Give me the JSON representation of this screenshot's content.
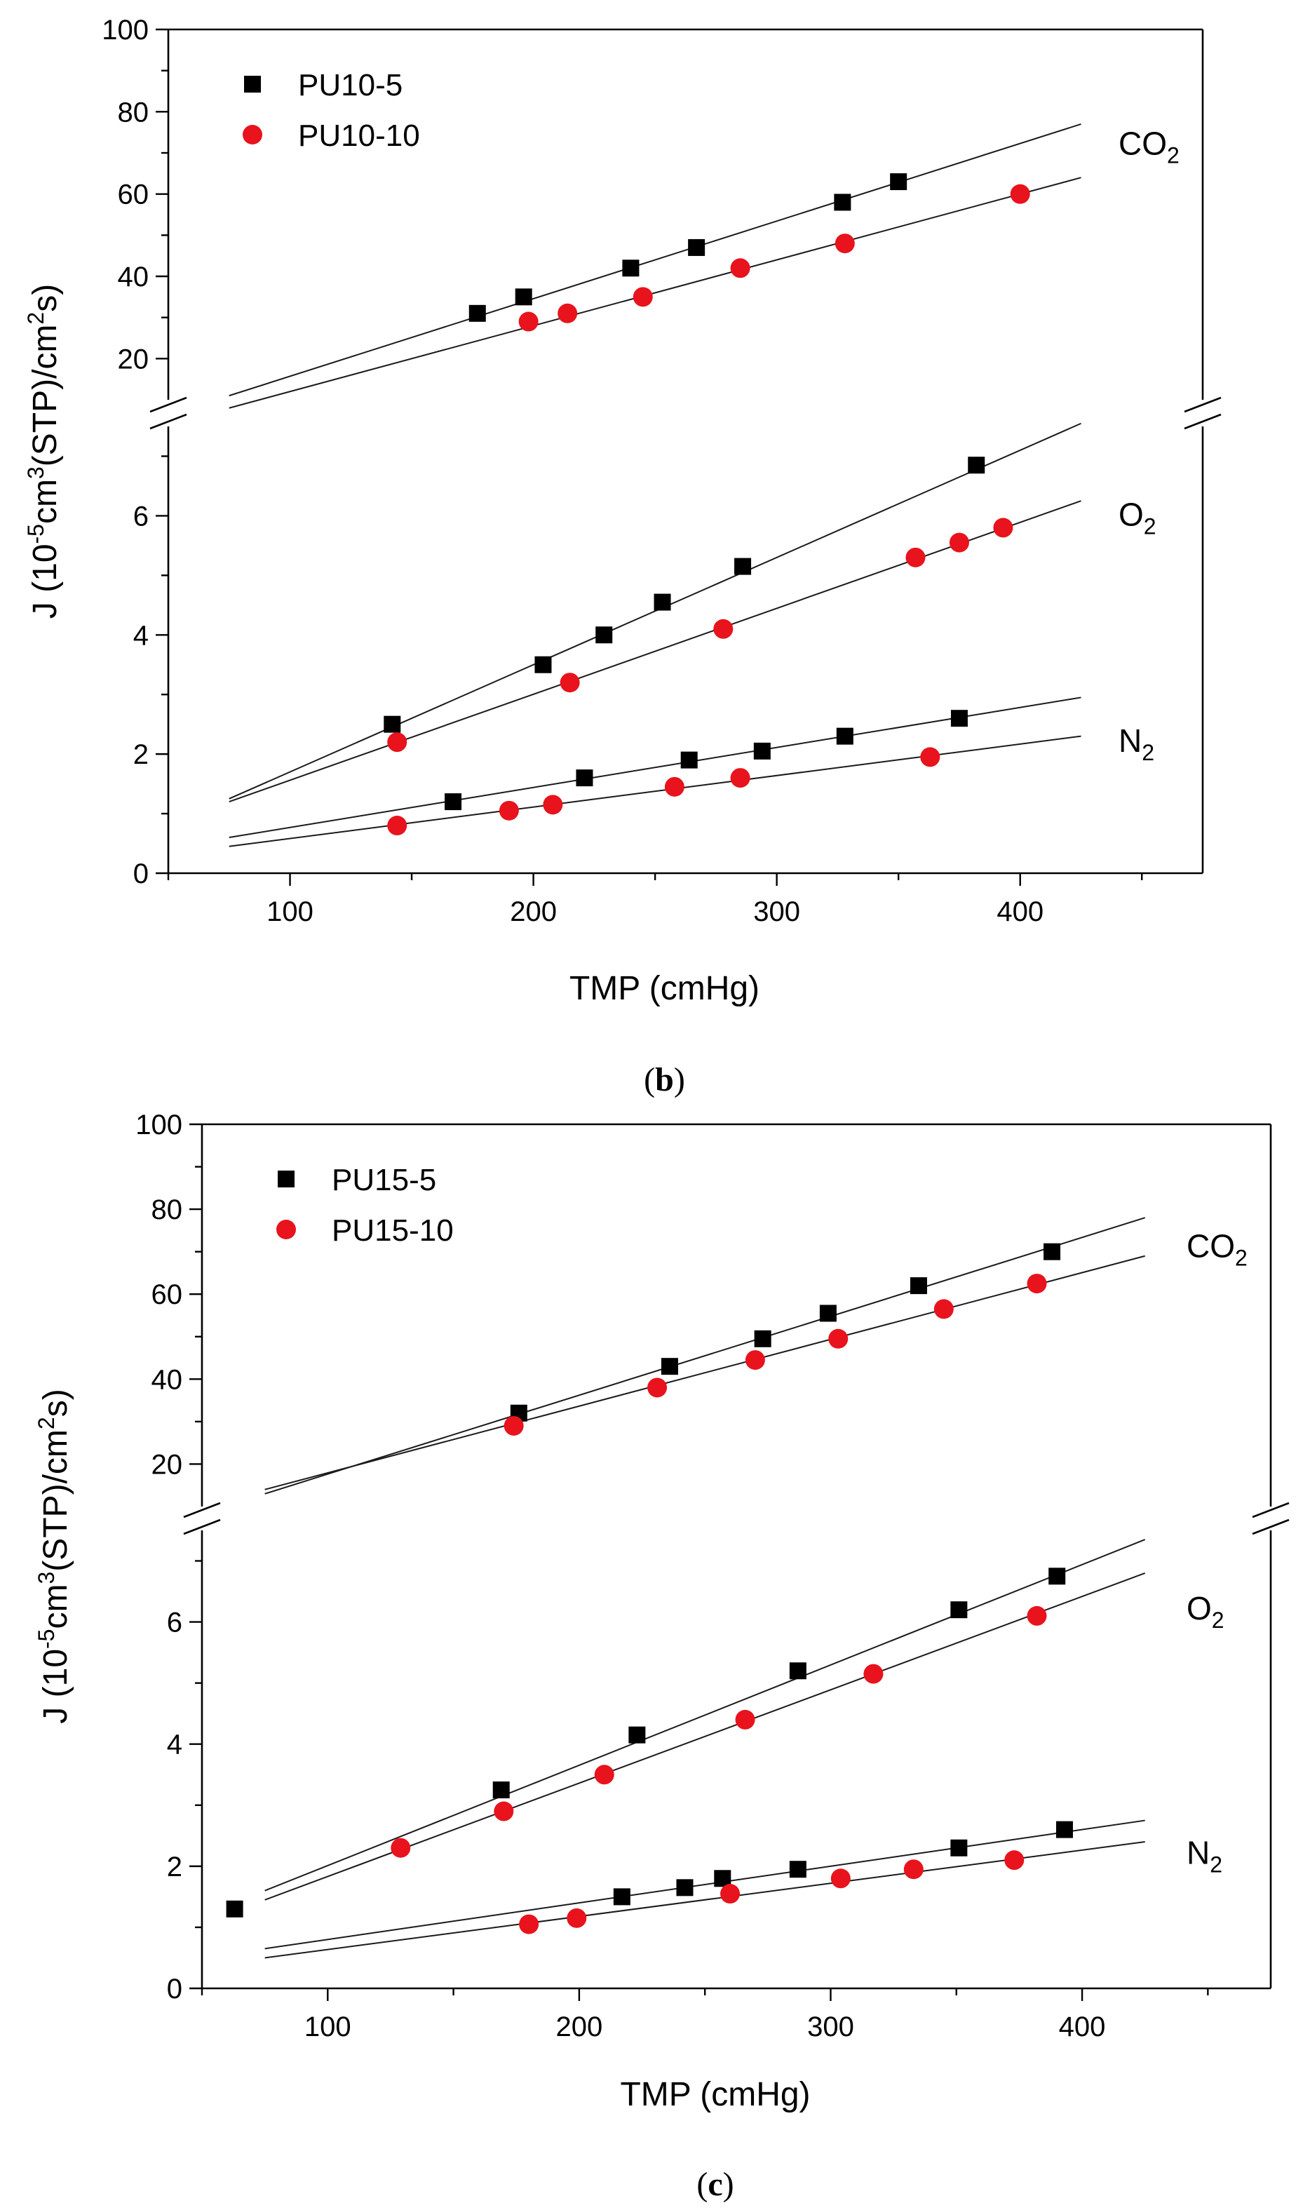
{
  "chart_data": [
    {
      "id": "b",
      "type": "scatter",
      "caption": {
        "open": "(",
        "letter": "b",
        "close": ")"
      },
      "xlabel": "TMP (cmHg)",
      "ylabel_parts": {
        "pre": "J (10",
        "sup1": "-5",
        "mid1": "cm",
        "sup2": "3",
        "mid2": "(STP)/cm",
        "sup3": "2",
        "post": "s)"
      },
      "xlim": [
        50,
        475
      ],
      "x_ticks": [
        100,
        200,
        300,
        400
      ],
      "y_lower_lim": [
        0,
        7.5
      ],
      "y_lower_ticks": [
        0,
        2,
        4,
        6
      ],
      "y_upper_lim": [
        10,
        100
      ],
      "y_upper_ticks": [
        20,
        40,
        60,
        80,
        100
      ],
      "axis_break": true,
      "legend": [
        {
          "name": "PU10-5",
          "marker": "square",
          "color": "#000000"
        },
        {
          "name": "PU10-10",
          "marker": "circle",
          "color": "#e8131c"
        }
      ],
      "gas_labels": [
        {
          "gas": "CO",
          "sub": "2",
          "axis": "upper",
          "y": 72
        },
        {
          "gas": "O",
          "sub": "2",
          "axis": "lower",
          "y": 6.0
        },
        {
          "gas": "N",
          "sub": "2",
          "axis": "lower",
          "y": 2.2
        }
      ],
      "series": [
        {
          "name": "PU10-5",
          "gas": "CO2",
          "axis": "upper",
          "marker": "square",
          "color": "#000000",
          "x": [
            177,
            196,
            240,
            267,
            327,
            350
          ],
          "y": [
            31,
            35,
            42,
            47,
            58,
            63
          ],
          "fit": {
            "x": [
              75,
              425
            ],
            "y": [
              11,
              77
            ]
          }
        },
        {
          "name": "PU10-10",
          "gas": "CO2",
          "axis": "upper",
          "marker": "circle",
          "color": "#e8131c",
          "x": [
            198,
            214,
            245,
            285,
            328,
            400
          ],
          "y": [
            29,
            31,
            35,
            42,
            48,
            60
          ],
          "fit": {
            "x": [
              75,
              425
            ],
            "y": [
              8,
              64
            ]
          }
        },
        {
          "name": "PU10-5",
          "gas": "O2",
          "axis": "lower",
          "marker": "square",
          "color": "#000000",
          "x": [
            142,
            204,
            229,
            253,
            286,
            382
          ],
          "y": [
            2.5,
            3.5,
            4.0,
            4.55,
            5.15,
            6.85
          ],
          "fit": {
            "x": [
              75,
              425
            ],
            "y": [
              1.25,
              7.55
            ]
          }
        },
        {
          "name": "PU10-10",
          "gas": "O2",
          "axis": "lower",
          "marker": "circle",
          "color": "#e8131c",
          "x": [
            144,
            215,
            278,
            357,
            375,
            393
          ],
          "y": [
            2.2,
            3.2,
            4.1,
            5.3,
            5.55,
            5.8
          ],
          "fit": {
            "x": [
              75,
              425
            ],
            "y": [
              1.2,
              6.25
            ]
          }
        },
        {
          "name": "PU10-5",
          "gas": "N2",
          "axis": "lower",
          "marker": "square",
          "color": "#000000",
          "x": [
            167,
            221,
            264,
            294,
            328,
            375
          ],
          "y": [
            1.2,
            1.6,
            1.9,
            2.05,
            2.3,
            2.6
          ],
          "fit": {
            "x": [
              75,
              425
            ],
            "y": [
              0.6,
              2.95
            ]
          }
        },
        {
          "name": "PU10-10",
          "gas": "N2",
          "axis": "lower",
          "marker": "circle",
          "color": "#e8131c",
          "x": [
            144,
            190,
            208,
            258,
            285,
            363
          ],
          "y": [
            0.8,
            1.05,
            1.15,
            1.45,
            1.6,
            1.95
          ],
          "fit": {
            "x": [
              75,
              425
            ],
            "y": [
              0.45,
              2.3
            ]
          }
        }
      ]
    },
    {
      "id": "c",
      "type": "scatter",
      "caption": {
        "open": "(",
        "letter": "c",
        "close": ")"
      },
      "xlabel": "TMP (cmHg)",
      "ylabel_parts": {
        "pre": "J (10",
        "sup1": "-5",
        "mid1": "cm",
        "sup2": "3",
        "mid2": "(STP)/cm",
        "sup3": "2",
        "post": "s)"
      },
      "xlim": [
        50,
        475
      ],
      "x_ticks": [
        100,
        200,
        300,
        400
      ],
      "y_lower_lim": [
        0,
        7.5
      ],
      "y_lower_ticks": [
        0,
        2,
        4,
        6
      ],
      "y_upper_lim": [
        10,
        100
      ],
      "y_upper_ticks": [
        20,
        40,
        60,
        80,
        100
      ],
      "axis_break": true,
      "legend": [
        {
          "name": "PU15-5",
          "marker": "square",
          "color": "#000000"
        },
        {
          "name": "PU15-10",
          "marker": "circle",
          "color": "#e8131c"
        }
      ],
      "gas_labels": [
        {
          "gas": "CO",
          "sub": "2",
          "axis": "upper",
          "y": 71
        },
        {
          "gas": "O",
          "sub": "2",
          "axis": "lower",
          "y": 6.2
        },
        {
          "gas": "N",
          "sub": "2",
          "axis": "lower",
          "y": 2.2
        }
      ],
      "series": [
        {
          "name": "PU15-5",
          "gas": "CO2",
          "axis": "upper",
          "marker": "square",
          "color": "#000000",
          "x": [
            176,
            236,
            273,
            299,
            335,
            388
          ],
          "y": [
            32,
            43,
            49.5,
            55.5,
            62,
            70
          ],
          "fit": {
            "x": [
              75,
              425
            ],
            "y": [
              13,
              78
            ]
          }
        },
        {
          "name": "PU15-10",
          "gas": "CO2",
          "axis": "upper",
          "marker": "circle",
          "color": "#e8131c",
          "x": [
            174,
            231,
            270,
            303,
            345,
            382
          ],
          "y": [
            29,
            38,
            44.5,
            49.5,
            56.5,
            62.5
          ],
          "fit": {
            "x": [
              75,
              425
            ],
            "y": [
              14,
              69
            ]
          }
        },
        {
          "name": "PU15-5",
          "gas": "O2",
          "axis": "lower",
          "marker": "square",
          "color": "#000000",
          "x": [
            169,
            223,
            287,
            351,
            390
          ],
          "y": [
            3.25,
            4.15,
            5.2,
            6.2,
            6.75
          ],
          "fit": {
            "x": [
              75,
              425
            ],
            "y": [
              1.6,
              7.35
            ]
          }
        },
        {
          "name": "PU15-10",
          "gas": "O2",
          "axis": "lower",
          "marker": "circle",
          "color": "#e8131c",
          "x": [
            129,
            170,
            210,
            266,
            317,
            382
          ],
          "y": [
            2.3,
            2.9,
            3.5,
            4.4,
            5.15,
            6.1
          ],
          "fit": {
            "x": [
              75,
              425
            ],
            "y": [
              1.45,
              6.8
            ]
          }
        },
        {
          "name": "PU15-5",
          "gas": "N2",
          "axis": "lower",
          "marker": "square",
          "color": "#000000",
          "x": [
            63,
            217,
            242,
            257,
            287,
            351,
            393
          ],
          "y": [
            1.3,
            1.5,
            1.65,
            1.8,
            1.95,
            2.3,
            2.6
          ],
          "fit": {
            "x": [
              75,
              425
            ],
            "y": [
              0.65,
              2.75
            ]
          }
        },
        {
          "name": "PU15-10",
          "gas": "N2",
          "axis": "lower",
          "marker": "circle",
          "color": "#e8131c",
          "x": [
            180,
            199,
            260,
            304,
            333,
            373
          ],
          "y": [
            1.05,
            1.15,
            1.55,
            1.8,
            1.95,
            2.1
          ],
          "fit": {
            "x": [
              75,
              425
            ],
            "y": [
              0.5,
              2.4
            ]
          }
        }
      ]
    }
  ]
}
